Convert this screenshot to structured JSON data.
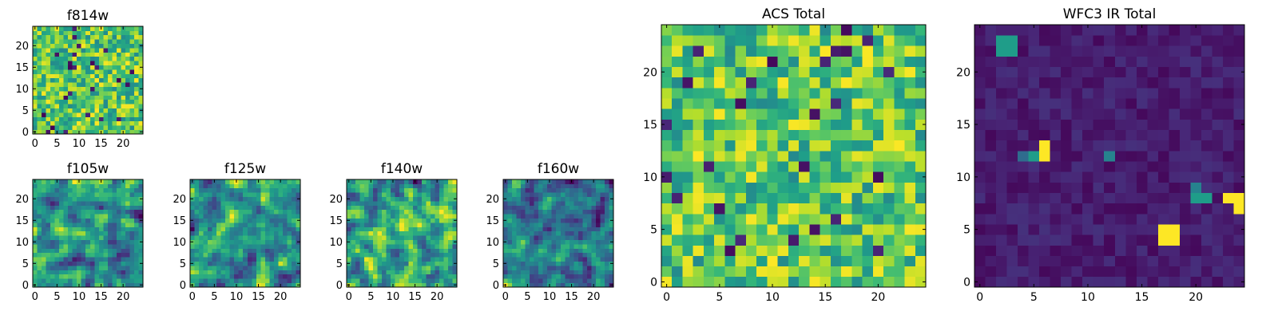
{
  "figure": {
    "colormap": "viridis",
    "colors": {
      "low": "#440154",
      "mid": "#21918c",
      "high": "#fde725",
      "frame": "#000000",
      "background": "#ffffff"
    }
  },
  "chart_data": [
    {
      "type": "heatmap",
      "title": "f814w",
      "grid": [
        25,
        25
      ],
      "xlim": [
        -0.5,
        24.5
      ],
      "ylim": [
        -0.5,
        24.5
      ],
      "xticks": [
        "0",
        "5",
        "10",
        "15",
        "20"
      ],
      "yticks": [
        "0",
        "5",
        "10",
        "15",
        "20"
      ],
      "value_range": [
        0,
        1
      ],
      "distribution": "uniform noise, mostly green-yellow, few dark pixels",
      "values_visible": "random pixel noise; individual values not legible"
    },
    {
      "type": "heatmap",
      "title": "f105w",
      "grid": [
        25,
        25
      ],
      "xlim": [
        -0.5,
        24.5
      ],
      "ylim": [
        -0.5,
        24.5
      ],
      "xticks": [
        "0",
        "5",
        "10",
        "15",
        "20"
      ],
      "yticks": [
        "0",
        "5",
        "10",
        "15",
        "20"
      ],
      "value_range": [
        0,
        1
      ],
      "distribution": "smooth correlated noise",
      "values_visible": "random pixel noise; individual values not legible"
    },
    {
      "type": "heatmap",
      "title": "f125w",
      "grid": [
        25,
        25
      ],
      "xlim": [
        -0.5,
        24.5
      ],
      "ylim": [
        -0.5,
        24.5
      ],
      "xticks": [
        "0",
        "5",
        "10",
        "15",
        "20"
      ],
      "yticks": [
        "0",
        "5",
        "10",
        "15",
        "20"
      ],
      "value_range": [
        0,
        1
      ],
      "distribution": "smooth correlated noise",
      "values_visible": "random pixel noise; individual values not legible"
    },
    {
      "type": "heatmap",
      "title": "f140w",
      "grid": [
        25,
        25
      ],
      "xlim": [
        -0.5,
        24.5
      ],
      "ylim": [
        -0.5,
        24.5
      ],
      "xticks": [
        "0",
        "5",
        "10",
        "15",
        "20"
      ],
      "yticks": [
        "0",
        "5",
        "10",
        "15",
        "20"
      ],
      "value_range": [
        0,
        1
      ],
      "distribution": "smooth correlated noise",
      "values_visible": "random pixel noise; individual values not legible"
    },
    {
      "type": "heatmap",
      "title": "f160w",
      "grid": [
        25,
        25
      ],
      "xlim": [
        -0.5,
        24.5
      ],
      "ylim": [
        -0.5,
        24.5
      ],
      "xticks": [
        "0",
        "5",
        "10",
        "15",
        "20"
      ],
      "yticks": [
        "0",
        "5",
        "10",
        "15",
        "20"
      ],
      "value_range": [
        0,
        1
      ],
      "distribution": "smooth correlated noise",
      "values_visible": "random pixel noise; individual values not legible"
    },
    {
      "type": "heatmap",
      "title": "ACS Total",
      "grid": [
        25,
        25
      ],
      "xlim": [
        -0.5,
        24.5
      ],
      "ylim": [
        -0.5,
        24.5
      ],
      "xticks": [
        "0",
        "5",
        "10",
        "15",
        "20"
      ],
      "yticks": [
        "0",
        "5",
        "10",
        "15",
        "20"
      ],
      "value_range": [
        0,
        1
      ],
      "distribution": "uniform noise, mostly green-yellow, few dark pixels",
      "values_visible": "random pixel noise; individual values not legible"
    },
    {
      "type": "heatmap",
      "title": "WFC3 IR Total",
      "grid": [
        25,
        25
      ],
      "xlim": [
        -0.5,
        24.5
      ],
      "ylim": [
        -0.5,
        24.5
      ],
      "xticks": [
        "0",
        "5",
        "10",
        "15",
        "20"
      ],
      "yticks": [
        "0",
        "5",
        "10",
        "15",
        "20"
      ],
      "value_range": [
        0,
        1
      ],
      "distribution": "dark background with a few bright sources",
      "bright_sources": [
        {
          "x": 17,
          "y": 4,
          "w": 2,
          "h": 2,
          "value": 1.0
        },
        {
          "x": 24,
          "y": 7,
          "w": 1,
          "h": 2,
          "value": 1.0
        },
        {
          "x": 23,
          "y": 8,
          "w": 1,
          "h": 1,
          "value": 1.0
        },
        {
          "x": 20,
          "y": 8,
          "w": 2,
          "h": 1,
          "value": 0.55
        },
        {
          "x": 20,
          "y": 9,
          "w": 1,
          "h": 1,
          "value": 0.45
        },
        {
          "x": 6,
          "y": 12,
          "w": 1,
          "h": 2,
          "value": 1.0
        },
        {
          "x": 5,
          "y": 12,
          "w": 1,
          "h": 1,
          "value": 0.55
        },
        {
          "x": 4,
          "y": 12,
          "w": 1,
          "h": 1,
          "value": 0.35
        },
        {
          "x": 12,
          "y": 12,
          "w": 1,
          "h": 1,
          "value": 0.45
        },
        {
          "x": 2,
          "y": 22,
          "w": 2,
          "h": 2,
          "value": 0.55
        }
      ]
    }
  ]
}
